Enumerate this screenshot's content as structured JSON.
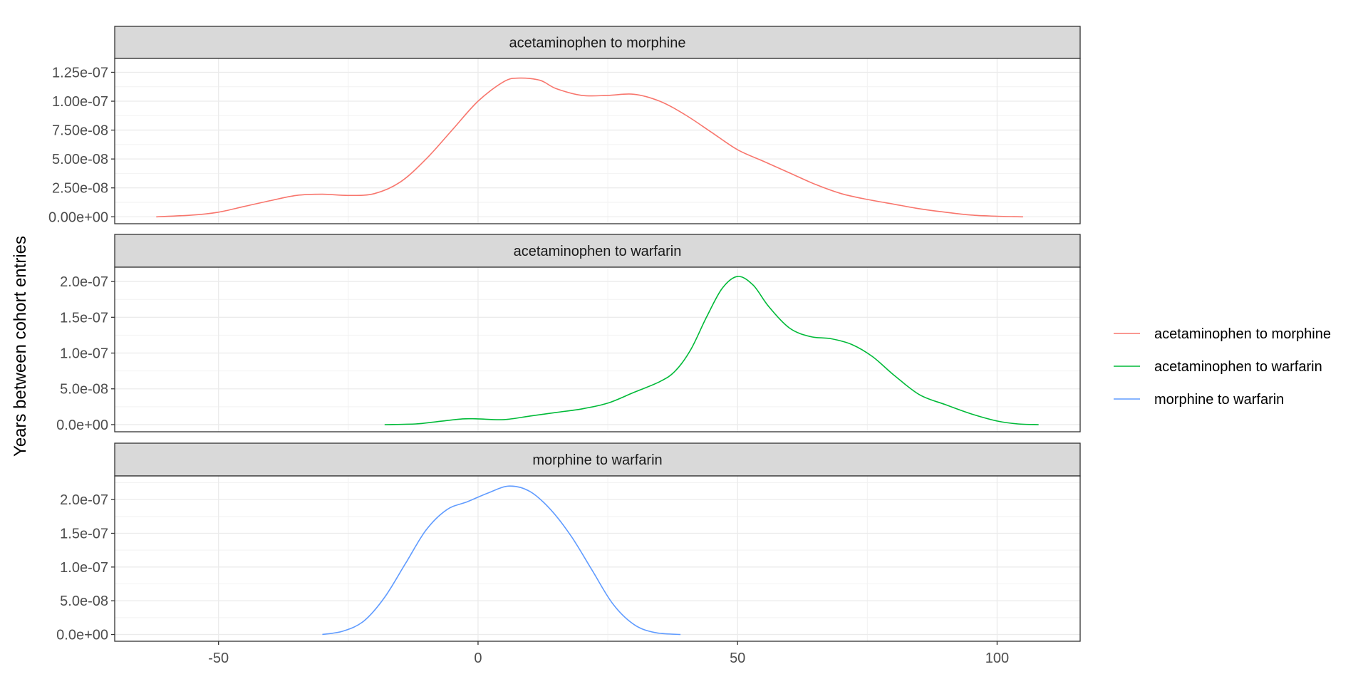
{
  "chart_data": {
    "type": "line",
    "ylabel": "Years between cohort entries",
    "xlim": [
      -70,
      116
    ],
    "x_ticks": [
      {
        "value": -50,
        "label": "-50"
      },
      {
        "value": 0,
        "label": "0"
      },
      {
        "value": 50,
        "label": "50"
      },
      {
        "value": 100,
        "label": "100"
      }
    ],
    "grid": true,
    "legend_position": "right",
    "legend": [
      {
        "label": "acetaminophen to morphine",
        "color": "#F8766D"
      },
      {
        "label": "acetaminophen to warfarin",
        "color": "#00BA38"
      },
      {
        "label": "morphine to warfarin",
        "color": "#619CFF"
      }
    ],
    "panels": [
      {
        "strip": "acetaminophen to morphine",
        "color": "#F8766D",
        "ylim": [
          -6e-09,
          1.37e-07
        ],
        "y_ticks": [
          {
            "value": 0,
            "label": "0.00e+00"
          },
          {
            "value": 2.5e-08,
            "label": "2.50e-08"
          },
          {
            "value": 5e-08,
            "label": "5.00e-08"
          },
          {
            "value": 7.5e-08,
            "label": "7.50e-08"
          },
          {
            "value": 1e-07,
            "label": "1.00e-07"
          },
          {
            "value": 1.25e-07,
            "label": "1.25e-07"
          }
        ],
        "x": [
          -62,
          -55,
          -50,
          -45,
          -40,
          -35,
          -30,
          -25,
          -20,
          -15,
          -10,
          -5,
          0,
          5,
          8,
          12,
          15,
          20,
          25,
          30,
          35,
          40,
          45,
          50,
          55,
          60,
          65,
          70,
          75,
          80,
          85,
          90,
          95,
          100,
          105
        ],
        "values": [
          0.0,
          1.5e-09,
          4e-09,
          9e-09,
          1.4e-08,
          1.85e-08,
          1.95e-08,
          1.85e-08,
          2e-08,
          3e-08,
          5e-08,
          7.5e-08,
          1e-07,
          1.17e-07,
          1.2e-07,
          1.18e-07,
          1.11e-07,
          1.05e-07,
          1.05e-07,
          1.06e-07,
          1e-07,
          8.8e-08,
          7.3e-08,
          5.8e-08,
          4.8e-08,
          3.8e-08,
          2.8e-08,
          2e-08,
          1.5e-08,
          1.1e-08,
          7e-09,
          4e-09,
          1.5e-09,
          5e-10,
          0.0
        ]
      },
      {
        "strip": "acetaminophen to warfarin",
        "color": "#00BA38",
        "ylim": [
          -1e-08,
          2.2e-07
        ],
        "y_ticks": [
          {
            "value": 0,
            "label": "0.0e+00"
          },
          {
            "value": 5e-08,
            "label": "5.0e-08"
          },
          {
            "value": 1e-07,
            "label": "1.0e-07"
          },
          {
            "value": 1.5e-07,
            "label": "1.5e-07"
          },
          {
            "value": 2e-07,
            "label": "2.0e-07"
          }
        ],
        "x": [
          -18,
          -12,
          -8,
          -3,
          0,
          5,
          10,
          15,
          20,
          25,
          30,
          35,
          38,
          41,
          44,
          47,
          50,
          53,
          56,
          60,
          64,
          68,
          72,
          76,
          80,
          85,
          90,
          95,
          100,
          104,
          108
        ],
        "values": [
          0.0,
          1e-09,
          4e-09,
          8e-09,
          8e-09,
          7e-09,
          1.2e-08,
          1.7e-08,
          2.2e-08,
          3e-08,
          4.5e-08,
          6e-08,
          7.5e-08,
          1.05e-07,
          1.5e-07,
          1.9e-07,
          2.07e-07,
          1.95e-07,
          1.65e-07,
          1.35e-07,
          1.23e-07,
          1.2e-07,
          1.12e-07,
          9.5e-08,
          7e-08,
          4.2e-08,
          2.8e-08,
          1.5e-08,
          5e-09,
          1e-09,
          0.0
        ]
      },
      {
        "strip": "morphine to warfarin",
        "color": "#619CFF",
        "ylim": [
          -1e-08,
          2.35e-07
        ],
        "y_ticks": [
          {
            "value": 0,
            "label": "0.0e+00"
          },
          {
            "value": 5e-08,
            "label": "5.0e-08"
          },
          {
            "value": 1e-07,
            "label": "1.0e-07"
          },
          {
            "value": 1.5e-07,
            "label": "1.5e-07"
          },
          {
            "value": 2e-07,
            "label": "2.0e-07"
          }
        ],
        "x": [
          -30,
          -26,
          -22,
          -18,
          -14,
          -10,
          -6,
          -2,
          2,
          6,
          10,
          14,
          18,
          22,
          26,
          30,
          34,
          39
        ],
        "values": [
          0.0,
          5e-09,
          2e-08,
          5.5e-08,
          1.05e-07,
          1.55e-07,
          1.85e-07,
          1.97e-07,
          2.1e-07,
          2.2e-07,
          2.12e-07,
          1.85e-07,
          1.45e-07,
          9.5e-08,
          4.5e-08,
          1.5e-08,
          3e-09,
          0.0
        ]
      }
    ]
  }
}
